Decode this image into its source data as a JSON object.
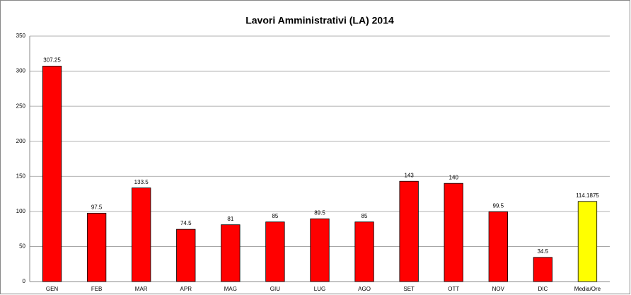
{
  "chart_data": {
    "type": "bar",
    "title": "Lavori Amministrativi (LA) 2014",
    "categories": [
      "GEN",
      "FEB",
      "MAR",
      "APR",
      "MAG",
      "GIU",
      "LUG",
      "AGO",
      "SET",
      "OTT",
      "NOV",
      "DIC",
      "Media/Ore"
    ],
    "values": [
      307.25,
      97.5,
      133.5,
      74.5,
      81,
      85,
      89.5,
      85,
      143,
      140,
      99.5,
      34.5,
      114.1875
    ],
    "colors": [
      "#ff0000",
      "#ff0000",
      "#ff0000",
      "#ff0000",
      "#ff0000",
      "#ff0000",
      "#ff0000",
      "#ff0000",
      "#ff0000",
      "#ff0000",
      "#ff0000",
      "#ff0000",
      "#ffff00"
    ],
    "ylim": [
      0,
      350
    ],
    "yticks": [
      0,
      50,
      100,
      150,
      200,
      250,
      300,
      350
    ],
    "grid": true
  }
}
